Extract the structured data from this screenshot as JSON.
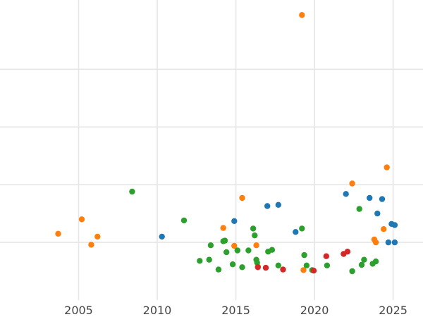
{
  "chart_data": {
    "type": "scatter",
    "title": "",
    "xlabel": "",
    "ylabel": "",
    "grid": true,
    "xlim": [
      2000.0,
      2026.9
    ],
    "ylim": [
      0,
      5.2
    ],
    "x_ticks": [
      {
        "value": 2005,
        "label": "2005"
      },
      {
        "value": 2010,
        "label": "2010"
      },
      {
        "value": 2015,
        "label": "2015"
      },
      {
        "value": 2020,
        "label": "2020"
      },
      {
        "value": 2025,
        "label": "2025"
      }
    ],
    "y_gridlines": [
      1,
      2,
      3,
      4
    ],
    "series": [
      {
        "color": "#1f77b4",
        "points": [
          [
            2010.3,
            1.1
          ],
          [
            2014.9,
            1.37
          ],
          [
            2017.0,
            1.63
          ],
          [
            2017.7,
            1.65
          ],
          [
            2018.8,
            1.18
          ],
          [
            2022.0,
            1.84
          ],
          [
            2023.5,
            1.77
          ],
          [
            2024.0,
            1.5
          ],
          [
            2024.3,
            1.75
          ],
          [
            2024.7,
            1.0
          ],
          [
            2024.9,
            1.32
          ],
          [
            2025.1,
            1.3
          ],
          [
            2025.1,
            1.0
          ]
        ]
      },
      {
        "color": "#ff7f0e",
        "points": [
          [
            2003.7,
            1.15
          ],
          [
            2005.2,
            1.4
          ],
          [
            2005.8,
            0.96
          ],
          [
            2006.2,
            1.1
          ],
          [
            2014.2,
            1.25
          ],
          [
            2014.9,
            0.94
          ],
          [
            2015.4,
            1.77
          ],
          [
            2016.3,
            0.95
          ],
          [
            2016.4,
            0.58
          ],
          [
            2019.2,
            4.94
          ],
          [
            2019.3,
            0.52
          ],
          [
            2022.4,
            2.02
          ],
          [
            2023.8,
            1.05
          ],
          [
            2023.9,
            1.0
          ],
          [
            2024.4,
            1.23
          ],
          [
            2024.6,
            2.3
          ]
        ]
      },
      {
        "color": "#2ca02c",
        "points": [
          [
            2008.4,
            1.88
          ],
          [
            2011.7,
            1.38
          ],
          [
            2012.7,
            0.68
          ],
          [
            2013.3,
            0.7
          ],
          [
            2013.4,
            0.95
          ],
          [
            2013.9,
            0.53
          ],
          [
            2014.2,
            1.02
          ],
          [
            2014.3,
            1.03
          ],
          [
            2014.4,
            0.83
          ],
          [
            2014.8,
            0.62
          ],
          [
            2015.1,
            0.86
          ],
          [
            2015.4,
            0.57
          ],
          [
            2015.8,
            0.86
          ],
          [
            2016.1,
            1.24
          ],
          [
            2016.2,
            1.12
          ],
          [
            2016.3,
            0.7
          ],
          [
            2016.35,
            0.65
          ],
          [
            2017.05,
            0.84
          ],
          [
            2017.3,
            0.87
          ],
          [
            2017.7,
            0.6
          ],
          [
            2019.2,
            1.24
          ],
          [
            2019.35,
            0.78
          ],
          [
            2019.5,
            0.6
          ],
          [
            2019.85,
            0.52
          ],
          [
            2020.8,
            0.6
          ],
          [
            2022.4,
            0.5
          ],
          [
            2022.85,
            1.58
          ],
          [
            2023.0,
            0.61
          ],
          [
            2023.15,
            0.7
          ],
          [
            2023.7,
            0.63
          ],
          [
            2023.9,
            0.67
          ]
        ]
      },
      {
        "color": "#d62728",
        "points": [
          [
            2016.4,
            0.57
          ],
          [
            2016.9,
            0.56
          ],
          [
            2018.0,
            0.53
          ],
          [
            2019.95,
            0.51
          ],
          [
            2020.75,
            0.76
          ],
          [
            2021.85,
            0.8
          ],
          [
            2022.1,
            0.84
          ]
        ]
      }
    ]
  }
}
